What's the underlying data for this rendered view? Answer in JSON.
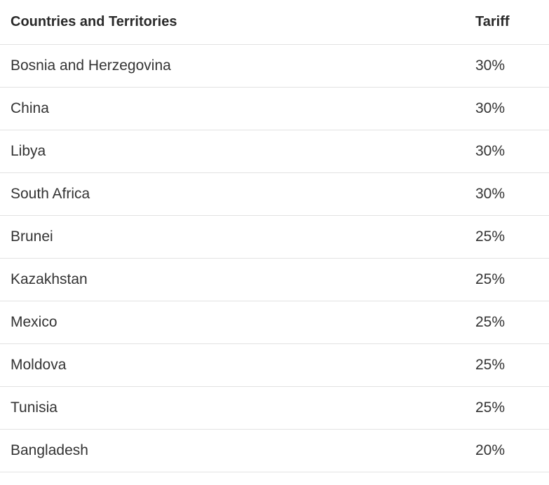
{
  "table": {
    "headers": {
      "country": "Countries and Territories",
      "tariff": "Tariff"
    },
    "rows": [
      {
        "country": "Bosnia and Herzegovina",
        "tariff": "30%"
      },
      {
        "country": "China",
        "tariff": "30%"
      },
      {
        "country": "Libya",
        "tariff": "30%"
      },
      {
        "country": "South Africa",
        "tariff": "30%"
      },
      {
        "country": "Brunei",
        "tariff": "25%"
      },
      {
        "country": "Kazakhstan",
        "tariff": "25%"
      },
      {
        "country": "Mexico",
        "tariff": "25%"
      },
      {
        "country": "Moldova",
        "tariff": "25%"
      },
      {
        "country": "Tunisia",
        "tariff": "25%"
      },
      {
        "country": "Bangladesh",
        "tariff": "20%"
      }
    ]
  },
  "colors": {
    "text": "#2b2b2b",
    "divider": "#e2e2e2",
    "background": "#ffffff"
  }
}
